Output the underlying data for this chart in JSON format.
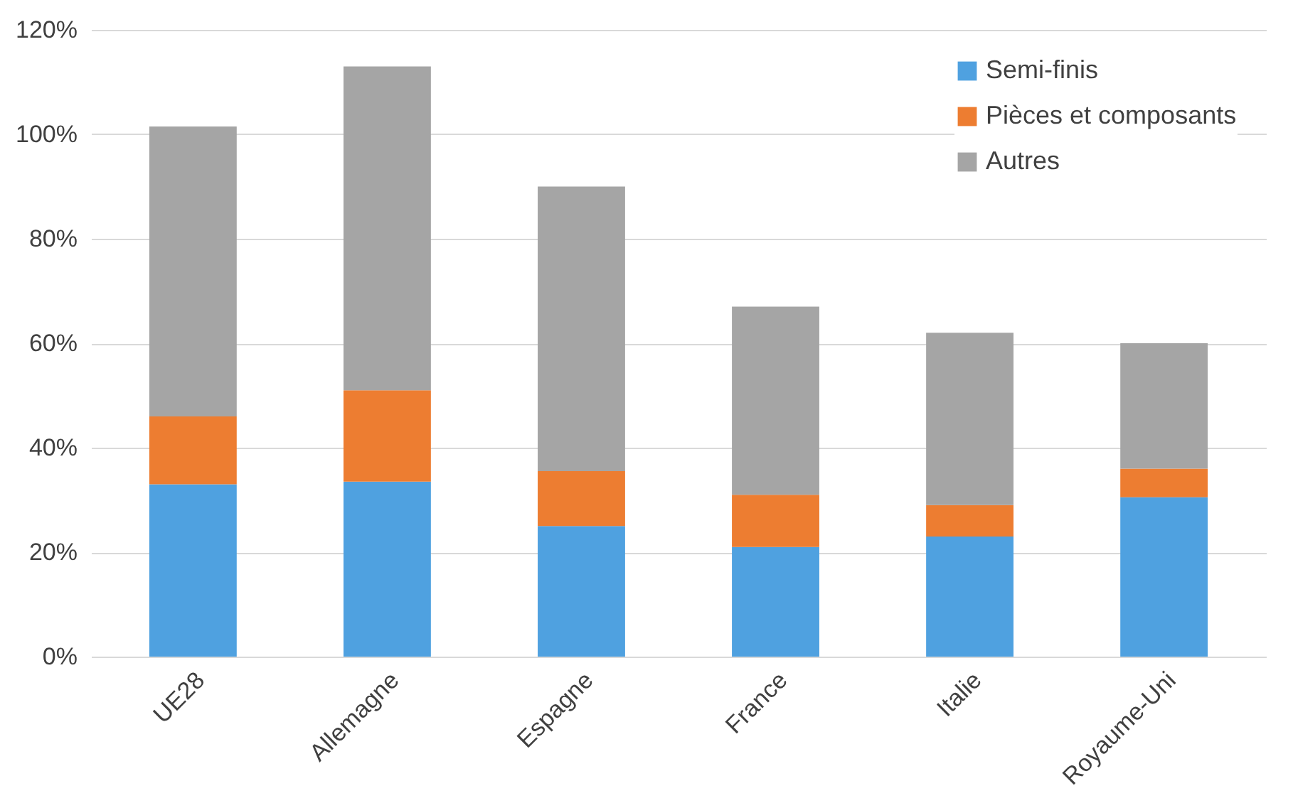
{
  "chart_data": {
    "type": "bar",
    "stacked": true,
    "categories": [
      "UE28",
      "Allemagne",
      "Espagne",
      "France",
      "Italie",
      "Royaume-Uni"
    ],
    "series": [
      {
        "name": "Semi-finis",
        "color": "#4fa1e0",
        "values": [
          33,
          33.5,
          25,
          21,
          23,
          30.5
        ]
      },
      {
        "name": "Pièces et composants",
        "color": "#ed7d31",
        "values": [
          13,
          17.5,
          10.5,
          10,
          6,
          5.5
        ]
      },
      {
        "name": "Autres",
        "color": "#a5a5a5",
        "values": [
          55.5,
          62,
          54.5,
          36,
          33,
          24
        ]
      }
    ],
    "ylim": [
      0,
      120
    ],
    "yticks": [
      {
        "value": 0,
        "label": "0%"
      },
      {
        "value": 20,
        "label": "20%"
      },
      {
        "value": 40,
        "label": "40%"
      },
      {
        "value": 60,
        "label": "60%"
      },
      {
        "value": 80,
        "label": "80%"
      },
      {
        "value": 100,
        "label": "100%"
      },
      {
        "value": 120,
        "label": "120%"
      }
    ],
    "grid": "y",
    "legend": "top right"
  }
}
